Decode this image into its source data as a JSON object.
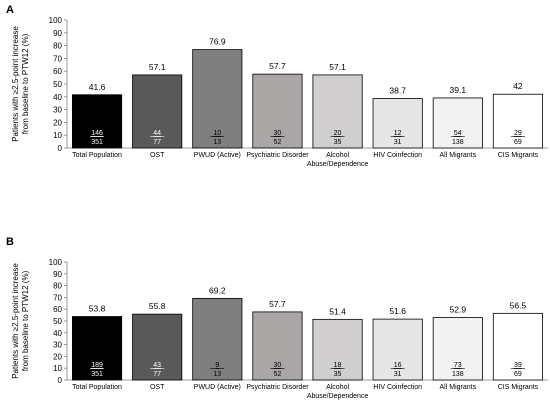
{
  "chart_data": [
    {
      "type": "bar",
      "panel": "A",
      "ylabel": "Patients with ≥2.5-point increase from baseline to PTW12 (%)",
      "ylabel_lines": [
        "Patients with ≥2.5-point increase",
        "from baseline to PTW12 (%)"
      ],
      "ylim": [
        0,
        100
      ],
      "yticks": [
        0,
        10,
        20,
        30,
        40,
        50,
        60,
        70,
        80,
        90,
        100
      ],
      "categories": [
        "Total Population",
        "OST",
        "PWUD (Active)",
        "Psychiatric Disorder",
        "Alcohol Abuse/Dependence",
        "HIV Coinfection",
        "All Migrants",
        "CIS Migrants"
      ],
      "category_lines": [
        [
          "Total Population"
        ],
        [
          "OST"
        ],
        [
          "PWUD (Active)"
        ],
        [
          "Psychiatric Disorder"
        ],
        [
          "Alcohol",
          "Abuse/Dependence"
        ],
        [
          "HIV Coinfection"
        ],
        [
          "All Migrants"
        ],
        [
          "CIS Migrants"
        ]
      ],
      "values": [
        41.6,
        57.1,
        76.9,
        57.7,
        57.1,
        38.7,
        39.1,
        42
      ],
      "value_labels": [
        "41.6",
        "57.1",
        "76.9",
        "57.7",
        "57.1",
        "38.7",
        "39.1",
        "42"
      ],
      "numerators": [
        "146",
        "44",
        "10",
        "30",
        "20",
        "12",
        "54",
        "29"
      ],
      "denominators": [
        "351",
        "77",
        "13",
        "52",
        "35",
        "31",
        "138",
        "69"
      ],
      "colors": [
        "#000000",
        "#595959",
        "#7f7f7f",
        "#aaa6a6",
        "#d0cece",
        "#e7e6e6",
        "#f2f2f2",
        "#ffffff"
      ],
      "grid": false
    },
    {
      "type": "bar",
      "panel": "B",
      "ylabel": "Patients with ≥2.5-point increase from baseline to PTW12 (%)",
      "ylabel_lines": [
        "Patients with ≥2.5-point increase",
        "from baseline to PTW12 (%)"
      ],
      "ylim": [
        0,
        100
      ],
      "yticks": [
        0,
        10,
        20,
        30,
        40,
        50,
        60,
        70,
        80,
        90,
        100
      ],
      "categories": [
        "Total Population",
        "OST",
        "PWUD (Active)",
        "Psychiatric Disorder",
        "Alcohol Abuse/Dependence",
        "HIV Coinfection",
        "All Migrants",
        "CIS Migrants"
      ],
      "category_lines": [
        [
          "Total Population"
        ],
        [
          "OST"
        ],
        [
          "PWUD (Active)"
        ],
        [
          "Psychiatric Disorder"
        ],
        [
          "Alcohol",
          "Abuse/Dependence"
        ],
        [
          "HIV Coinfection"
        ],
        [
          "All Migrants"
        ],
        [
          "CIS Migrants"
        ]
      ],
      "values": [
        53.8,
        55.8,
        69.2,
        57.7,
        51.4,
        51.6,
        52.9,
        56.5
      ],
      "value_labels": [
        "53.8",
        "55.8",
        "69.2",
        "57.7",
        "51.4",
        "51.6",
        "52.9",
        "56.5"
      ],
      "numerators": [
        "189",
        "43",
        "9",
        "30",
        "18",
        "16",
        "73",
        "39"
      ],
      "denominators": [
        "351",
        "77",
        "13",
        "52",
        "35",
        "31",
        "138",
        "69"
      ],
      "colors": [
        "#000000",
        "#595959",
        "#7f7f7f",
        "#aaa6a6",
        "#d0cece",
        "#e7e6e6",
        "#f2f2f2",
        "#ffffff"
      ],
      "grid": false
    }
  ]
}
